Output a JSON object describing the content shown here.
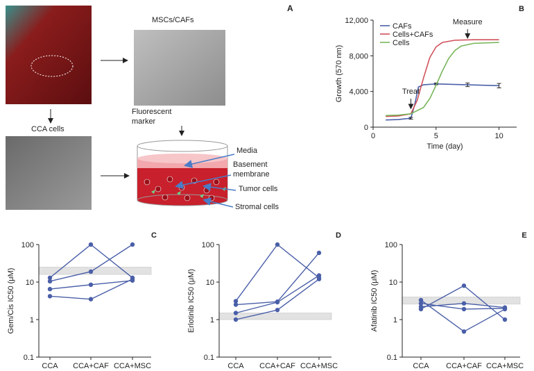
{
  "panel_a": {
    "letter": "A",
    "msc_label": "MSCs/CAFs",
    "cca_label": "CCA cells",
    "marker_label": "Fluorescent marker",
    "media": "Media",
    "membrane": "Basement membrane",
    "tumor": "Tumor cells",
    "stromal": "Stromal cells"
  },
  "chart_data": [
    {
      "type": "line",
      "letter": "B",
      "xlabel": "Time (day)",
      "ylabel": "Growth (570 nm)",
      "xlim": [
        0,
        11.4
      ],
      "xticks": [
        0,
        5,
        10
      ],
      "ylim": [
        0,
        12000
      ],
      "yticks": [
        0,
        {
          "value": 4000,
          "label": "4,000"
        },
        {
          "value": 8000,
          "label": "8,000"
        },
        {
          "value": 12000,
          "label": "12,000"
        }
      ],
      "legend": "upper left",
      "annotations": [
        "Treat",
        "Measure"
      ],
      "series": [
        {
          "name": "CAFs",
          "color": "#4a5fa8",
          "x": [
            1,
            2,
            3,
            3.3,
            3.6,
            4,
            5,
            7.5,
            10
          ],
          "values": [
            800,
            850,
            1000,
            2500,
            4500,
            4750,
            4850,
            4750,
            4650
          ],
          "errors": [
            null,
            null,
            100,
            null,
            null,
            null,
            100,
            200,
            250
          ]
        },
        {
          "name": "Cells+CAFs",
          "color": "#d0505a",
          "x": [
            1,
            2,
            3,
            3.5,
            4,
            4.5,
            5,
            5.5,
            6.5,
            8,
            10
          ],
          "values": [
            1200,
            1250,
            1500,
            3000,
            5500,
            7800,
            9000,
            9500,
            9750,
            9800,
            9800
          ]
        },
        {
          "name": "Cells",
          "color": "#78b55a",
          "x": [
            1,
            2,
            3,
            4,
            4.5,
            5,
            5.5,
            6,
            6.5,
            7,
            8,
            10
          ],
          "values": [
            1300,
            1350,
            1500,
            2200,
            3200,
            4700,
            6300,
            7700,
            8600,
            9100,
            9400,
            9500
          ]
        }
      ]
    },
    {
      "type": "dotline",
      "letter": "C",
      "ylabel": "Gem/Cis IC50 (μM)",
      "log": true,
      "ylim": [
        0.1,
        100
      ],
      "yticks": [
        0.1,
        1,
        10,
        100
      ],
      "categories": [
        "CCA",
        "CCA+CAF",
        "CCA+MSC"
      ],
      "band": [
        16,
        25
      ],
      "color": "#4a5fa8",
      "series": [
        {
          "values": [
            13,
            100,
            13
          ]
        },
        {
          "values": [
            10.5,
            19,
            100
          ]
        },
        {
          "values": [
            6.5,
            8.5,
            11
          ]
        },
        {
          "values": [
            4.2,
            3.5,
            12
          ]
        }
      ]
    },
    {
      "type": "dotline",
      "letter": "D",
      "ylabel": "Erlotinib IC50 (μM)",
      "log": true,
      "ylim": [
        0.1,
        100
      ],
      "yticks": [
        0.1,
        1,
        10,
        100
      ],
      "categories": [
        "CCA",
        "CCA+CAF",
        "CCA+MSC"
      ],
      "band": [
        1.0,
        1.5
      ],
      "color": "#4a5fa8",
      "series": [
        {
          "values": [
            3.1,
            100,
            13
          ]
        },
        {
          "values": [
            2.5,
            3.0,
            60
          ]
        },
        {
          "values": [
            1.5,
            2.9,
            15
          ]
        },
        {
          "values": [
            1.0,
            1.8,
            12
          ]
        }
      ]
    },
    {
      "type": "dotline",
      "letter": "E",
      "ylabel": "Afatinib IC50 (μM)",
      "log": true,
      "ylim": [
        0.1,
        100
      ],
      "yticks": [
        0.1,
        1,
        10,
        100
      ],
      "categories": [
        "CCA",
        "CCA+CAF",
        "CCA+MSC"
      ],
      "band": [
        2.6,
        4
      ],
      "color": "#4a5fa8",
      "series": [
        {
          "values": [
            3.3,
            0.48,
            1.9
          ]
        },
        {
          "values": [
            1.9,
            8,
            1.0
          ]
        },
        {
          "values": [
            2.2,
            2.7,
            2.1
          ]
        },
        {
          "values": [
            2.7,
            1.9,
            2.0
          ]
        }
      ]
    }
  ]
}
